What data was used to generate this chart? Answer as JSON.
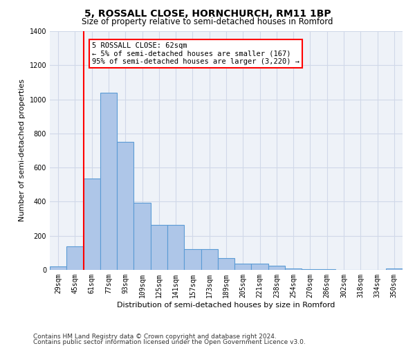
{
  "title1": "5, ROSSALL CLOSE, HORNCHURCH, RM11 1BP",
  "title2": "Size of property relative to semi-detached houses in Romford",
  "xlabel": "Distribution of semi-detached houses by size in Romford",
  "ylabel": "Number of semi-detached properties",
  "footnote1": "Contains HM Land Registry data © Crown copyright and database right 2024.",
  "footnote2": "Contains public sector information licensed under the Open Government Licence v3.0.",
  "categories": [
    "29sqm",
    "45sqm",
    "61sqm",
    "77sqm",
    "93sqm",
    "109sqm",
    "125sqm",
    "141sqm",
    "157sqm",
    "173sqm",
    "189sqm",
    "205sqm",
    "221sqm",
    "238sqm",
    "254sqm",
    "270sqm",
    "286sqm",
    "302sqm",
    "318sqm",
    "334sqm",
    "350sqm"
  ],
  "values": [
    20,
    140,
    535,
    1040,
    750,
    395,
    265,
    265,
    120,
    120,
    70,
    35,
    35,
    25,
    10,
    5,
    5,
    0,
    0,
    0,
    10
  ],
  "bar_color": "#aec6e8",
  "bar_edge_color": "#5b9bd5",
  "vline_color": "red",
  "annotation_line1": "5 ROSSALL CLOSE: 62sqm",
  "annotation_line2": "← 5% of semi-detached houses are smaller (167)",
  "annotation_line3": "95% of semi-detached houses are larger (3,220) →",
  "ylim": [
    0,
    1400
  ],
  "yticks": [
    0,
    200,
    400,
    600,
    800,
    1000,
    1200,
    1400
  ],
  "grid_color": "#d0d8e8",
  "bg_color": "#eef2f8",
  "title1_fontsize": 10,
  "title2_fontsize": 8.5,
  "xlabel_fontsize": 8,
  "ylabel_fontsize": 8,
  "tick_fontsize": 7,
  "annotation_fontsize": 7.5,
  "footnote_fontsize": 6.5
}
